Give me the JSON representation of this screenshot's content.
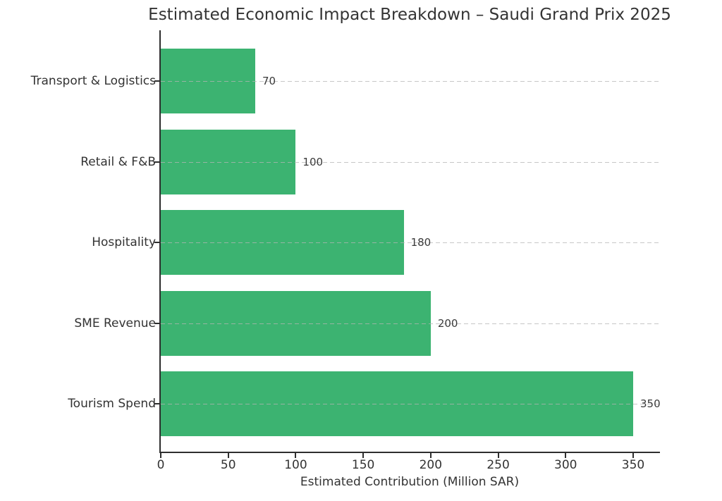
{
  "chart_data": {
    "type": "bar",
    "orientation": "horizontal",
    "title": "Estimated Economic Impact Breakdown – Saudi Grand Prix 2025",
    "xlabel": "Estimated Contribution (Million SAR)",
    "categories": [
      "Transport & Logistics",
      "Retail & F&B",
      "Hospitality",
      "SME Revenue",
      "Tourism Spend"
    ],
    "values": [
      70,
      100,
      180,
      200,
      350
    ],
    "value_labels": [
      "70",
      "100",
      "180",
      "200",
      "350"
    ],
    "xticks": [
      0,
      50,
      100,
      150,
      200,
      250,
      300,
      350
    ],
    "xlim": [
      0,
      369
    ],
    "grid": "horizontal dashed",
    "legend": "none",
    "colors": {
      "bar": "#3cb371",
      "text": "#333333",
      "spine": "#2e2e2e",
      "grid": "#c8c8c8",
      "background": "#ffffff"
    }
  }
}
